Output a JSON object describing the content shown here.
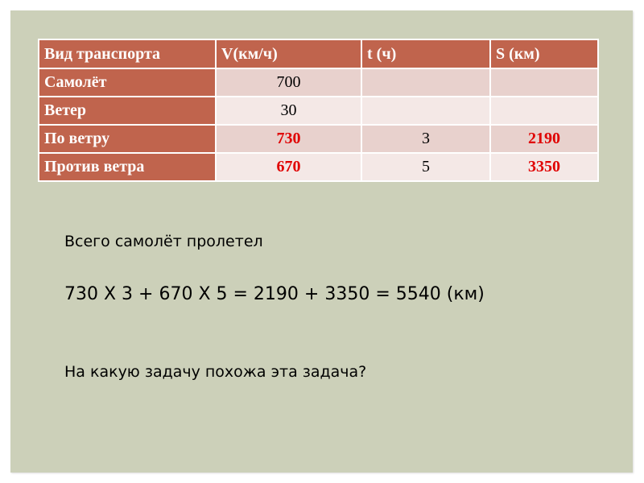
{
  "table": {
    "headers": [
      "Вид транспорта",
      "V(км/ч)",
      "t (ч)",
      "S (км)"
    ],
    "rows": [
      {
        "label": "Самолёт",
        "v": "700",
        "t": "",
        "s": ""
      },
      {
        "label": "Ветер",
        "v": "30",
        "t": "",
        "s": ""
      },
      {
        "label": "По ветру",
        "v": "730",
        "t": "3",
        "s": "2190"
      },
      {
        "label": "Против ветра",
        "v": "670",
        "t": "5",
        "s": "3350"
      }
    ]
  },
  "text": {
    "line1": "Всего самолёт пролетел",
    "formula": "730 Х 3 + 670 Х 5 = 2190 + 3350 = 5540 (км)",
    "question": "На какую задачу похожа эта задача?"
  },
  "colors": {
    "header": "#c0644d",
    "highlight": "#e00000",
    "background": "#ccd0b9"
  }
}
